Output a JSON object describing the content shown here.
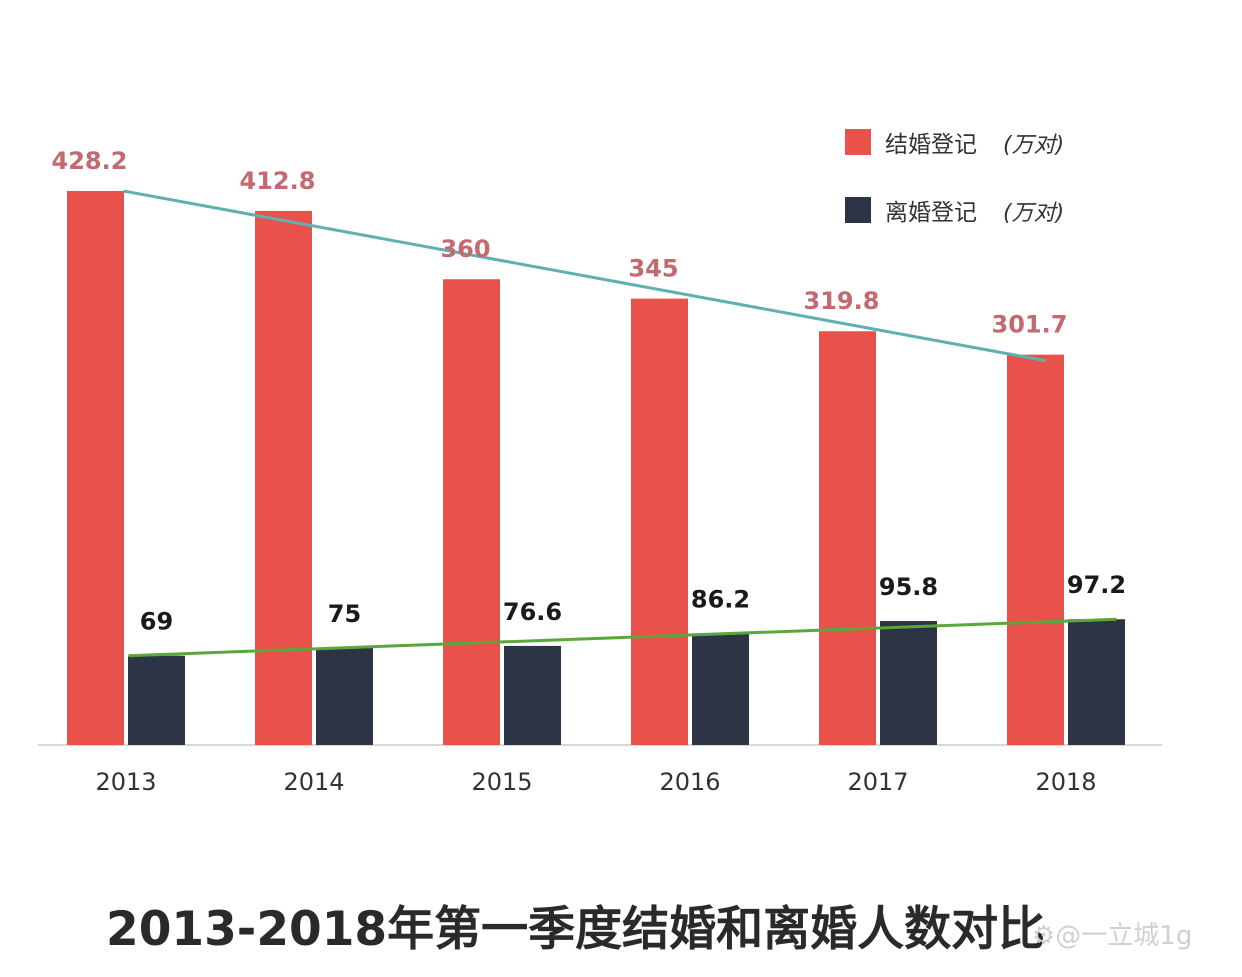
{
  "chart_data": {
    "type": "bar",
    "title": "2013-2018年第一季度结婚和离婚人数对比",
    "categories": [
      "2013",
      "2014",
      "2015",
      "2016",
      "2017",
      "2018"
    ],
    "series": [
      {
        "name": "结婚登记",
        "unit": "(万对)",
        "color": "#e8524a",
        "label_color": "#c26a70",
        "trend_color": "#5fb0b0",
        "values": [
          428.2,
          412.8,
          360,
          345,
          319.8,
          301.7
        ],
        "labels": [
          "428.2",
          "412.8",
          "360",
          "345",
          "319.8",
          "301.7"
        ]
      },
      {
        "name": "离婚登记",
        "unit": "(万对)",
        "color": "#2d3446",
        "label_color": "#1a1a1a",
        "trend_color": "#5aa83c",
        "values": [
          69,
          75,
          76.6,
          86.2,
          95.8,
          97.2
        ],
        "labels": [
          "69",
          "75",
          "76.6",
          "86.2",
          "95.8",
          "97.2"
        ]
      }
    ],
    "ylim": [
      0,
      428.2
    ],
    "grid": false,
    "legend_position": "top-right",
    "xlabel": "",
    "ylabel": ""
  },
  "watermark": "⚙@一立城1g"
}
